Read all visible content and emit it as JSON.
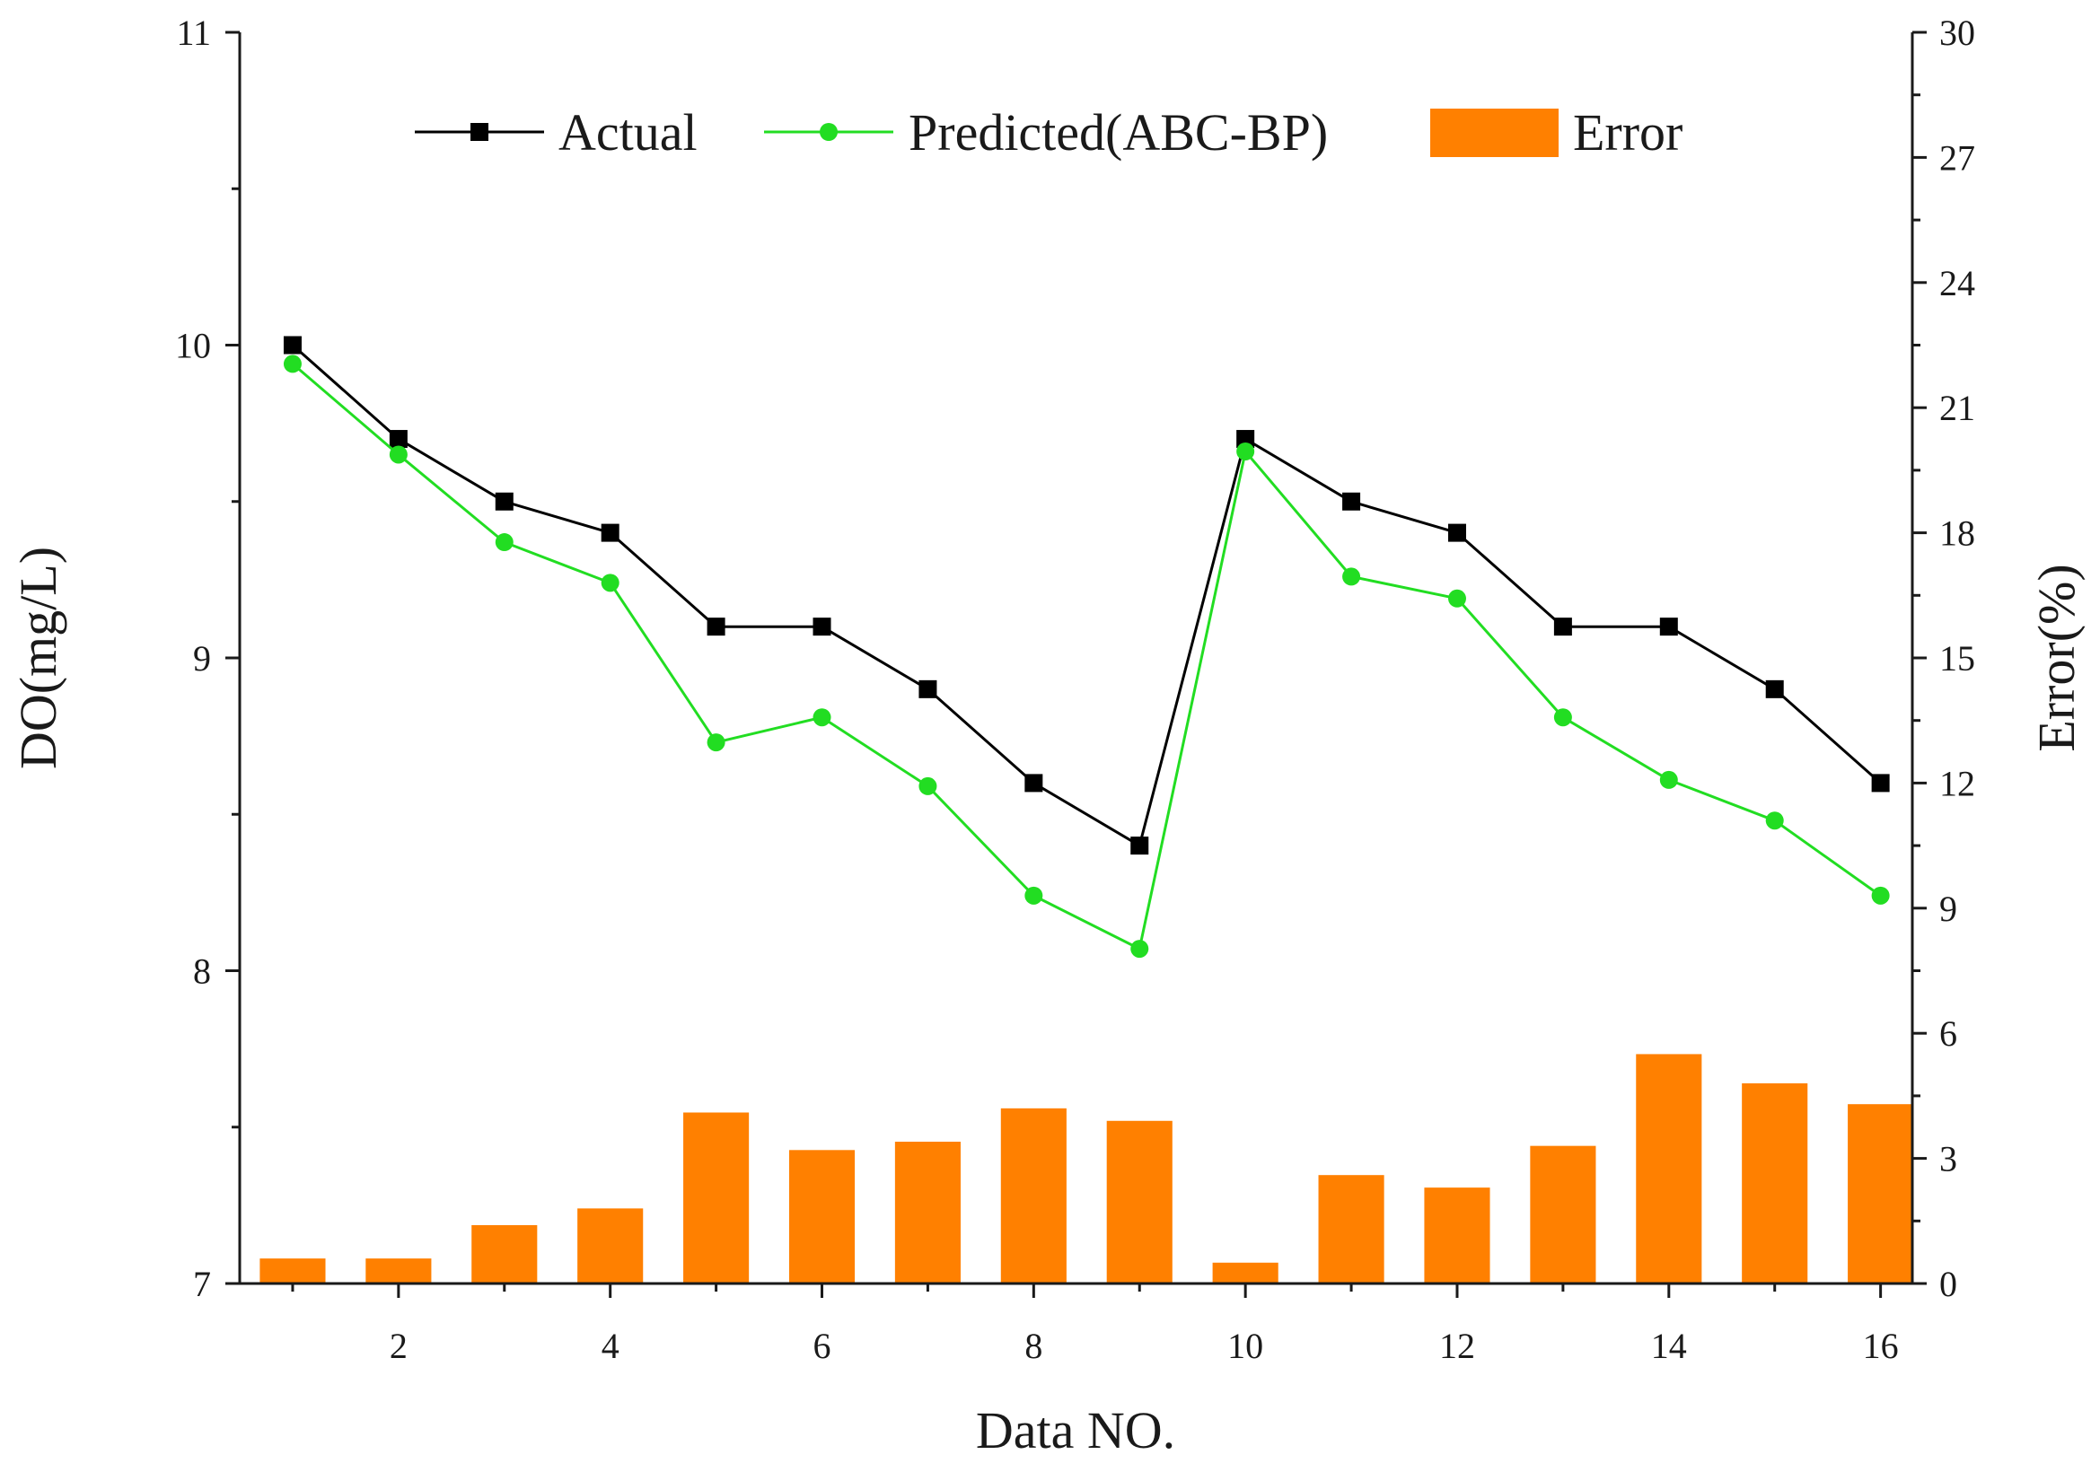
{
  "chart_data": {
    "type": "bar+line",
    "xlabel": "Data NO.",
    "ylabel_left": "DO(mg/L)",
    "ylabel_right": "Error(%)",
    "x": [
      1,
      2,
      3,
      4,
      5,
      6,
      7,
      8,
      9,
      10,
      11,
      12,
      13,
      14,
      15,
      16
    ],
    "x_ticks": [
      "2",
      "4",
      "6",
      "8",
      "10",
      "12",
      "14",
      "16"
    ],
    "xlim": [
      0.5,
      16.3
    ],
    "ylim_left": [
      7,
      11
    ],
    "y_left_ticks": [
      "7",
      "8",
      "9",
      "10",
      "11"
    ],
    "ylim_right": [
      0,
      30
    ],
    "y_right_ticks": [
      "0",
      "3",
      "6",
      "9",
      "12",
      "15",
      "18",
      "21",
      "24",
      "27",
      "30"
    ],
    "series": [
      {
        "name": "Actual",
        "type": "line",
        "axis": "left",
        "marker": "square",
        "color": "#000000",
        "values": [
          10.0,
          9.7,
          9.5,
          9.4,
          9.1,
          9.1,
          8.9,
          8.6,
          8.4,
          9.7,
          9.5,
          9.4,
          9.1,
          9.1,
          8.9,
          8.6
        ]
      },
      {
        "name": "Predicted(ABC-BP)",
        "type": "line",
        "axis": "left",
        "marker": "circle",
        "color": "#22dd22",
        "values": [
          9.94,
          9.65,
          9.37,
          9.24,
          8.73,
          8.81,
          8.59,
          8.24,
          8.07,
          9.66,
          9.26,
          9.19,
          8.81,
          8.61,
          8.48,
          8.24
        ]
      },
      {
        "name": "Error",
        "type": "bar",
        "axis": "right",
        "color": "#ff8000",
        "values": [
          0.6,
          0.6,
          1.4,
          1.8,
          4.1,
          3.2,
          3.4,
          4.2,
          3.9,
          0.5,
          2.6,
          2.3,
          3.3,
          5.5,
          4.8,
          4.3
        ]
      }
    ],
    "legend": {
      "placement": "top",
      "entries": [
        "Actual",
        "Predicted(ABC-BP)",
        "Error"
      ]
    },
    "grid": false
  }
}
